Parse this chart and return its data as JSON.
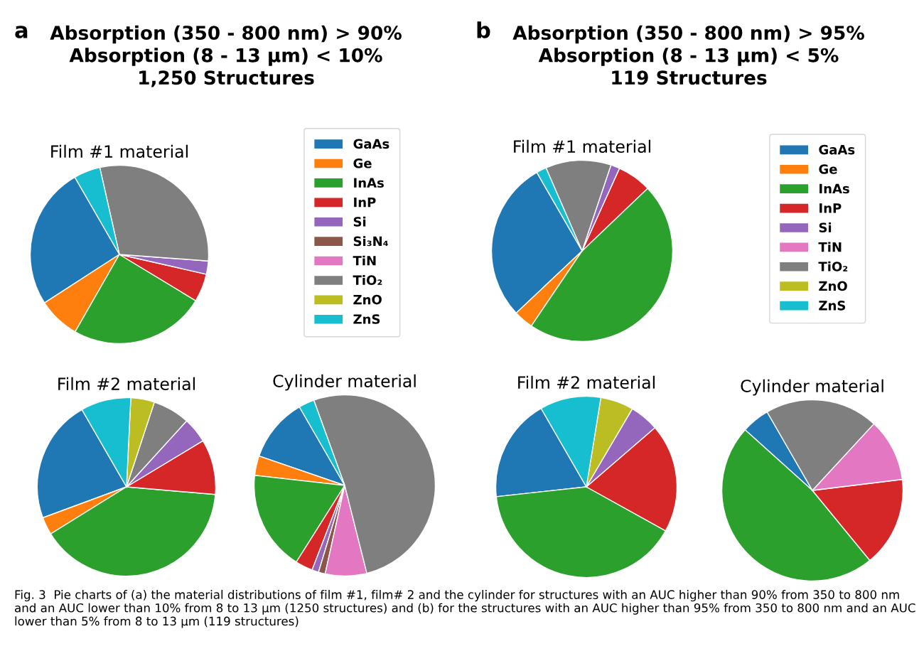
{
  "chart_data": [
    {
      "type": "pie",
      "title": "Film #1 material",
      "legend": "right",
      "annotations": [
        "a",
        "Absorption (350 - 800 nm) > 90%\nAbsorption (8 - 13 µm) < 10%\n1,250 Structures",
        "Fig. 3  Pie charts of (a) the material distributions of film #1, film# 2 and the cylinder for structures with an AUC higher than 90% from 350 to 800 nm and an AUC lower than 10% from 8 to 13 µm (1250 structures) and (b) for the structures with an AUC higher than 95% from 350 to 800 nm and an AUC lower than 5% from 8 to 13 µm (119 structures)"
      ],
      "categories": [
        "GaAs",
        "Ge",
        "InAs",
        "InP",
        "Si",
        "Si₃N₄",
        "TiN",
        "TiO₂",
        "ZnO",
        "ZnS"
      ],
      "values": [
        25.8,
        7.6,
        24.6,
        5.1,
        2.4,
        0,
        0,
        29.7,
        0,
        4.8
      ],
      "colors": [
        "#1f77b4",
        "#ff7f0e",
        "#2ca02c",
        "#d62728",
        "#9467bd",
        "#8c564b",
        "#e377c2",
        "#7f7f7f",
        "#bcbd22",
        "#17becf"
      ]
    },
    {
      "type": "pie",
      "title": "Film #1 material",
      "legend": "right",
      "annotations": [
        "b",
        "Absorption (350 - 800 nm) > 95%\nAbsorption (8 - 13 µm) < 5%\n119 Structures"
      ],
      "categories": [
        "GaAs",
        "Ge",
        "InAs",
        "InP",
        "Si",
        "TiN",
        "TiO₂",
        "ZnO",
        "ZnS"
      ],
      "values": [
        28.7,
        3.5,
        46.6,
        6.1,
        1.6,
        0,
        11.7,
        0,
        1.8
      ],
      "colors": [
        "#1f77b4",
        "#ff7f0e",
        "#2ca02c",
        "#d62728",
        "#9467bd",
        "#e377c2",
        "#7f7f7f",
        "#bcbd22",
        "#17becf"
      ]
    },
    {
      "type": "pie",
      "title": "Film #2 material",
      "categories": [
        null,
        null,
        null,
        null,
        null,
        null,
        null,
        null
      ],
      "values": [
        22.3,
        3.2,
        39.8,
        10.0,
        4.6,
        6.7,
        4.3,
        9.1
      ],
      "colors": [
        "#1f77b4",
        "#ff7f0e",
        "#2ca02c",
        "#d62728",
        "#9467bd",
        "#7f7f7f",
        "#bcbd22",
        "#17becf"
      ]
    },
    {
      "type": "pie",
      "title": "Cylinder material",
      "categories": [
        null,
        null,
        null,
        null,
        null,
        null,
        null,
        null,
        null
      ],
      "values": [
        11.4,
        3.5,
        17.8,
        3.1,
        1.2,
        1.2,
        7.4,
        51.6,
        2.8
      ],
      "colors": [
        "#1f77b4",
        "#ff7f0e",
        "#2ca02c",
        "#d62728",
        "#9467bd",
        "#8c564b",
        "#e377c2",
        "#7f7f7f",
        "#17becf"
      ]
    },
    {
      "type": "pie",
      "title": "Film #2 material",
      "categories": [
        null,
        null,
        null,
        null,
        null,
        null
      ],
      "values": [
        18.4,
        40.2,
        19.4,
        5.2,
        5.9,
        10.9
      ],
      "colors": [
        "#1f77b4",
        "#2ca02c",
        "#d62728",
        "#9467bd",
        "#bcbd22",
        "#17becf"
      ]
    },
    {
      "type": "pie",
      "title": "Cylinder material",
      "categories": [
        null,
        null,
        null,
        null,
        null
      ],
      "values": [
        5.0,
        47.6,
        16.0,
        11.2,
        20.2
      ],
      "colors": [
        "#1f77b4",
        "#2ca02c",
        "#d62728",
        "#e377c2",
        "#7f7f7f"
      ]
    }
  ]
}
